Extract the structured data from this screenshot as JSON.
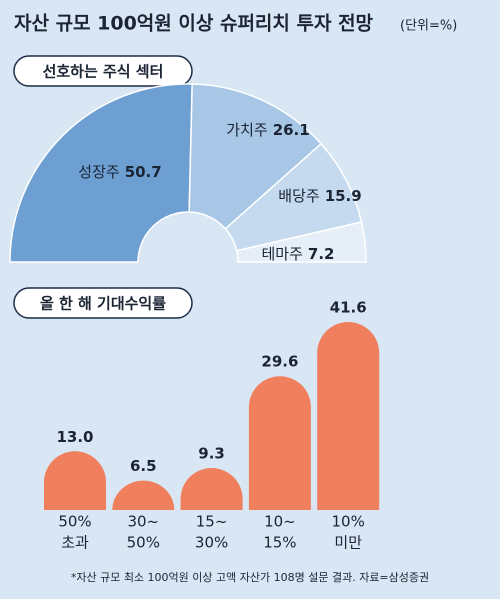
{
  "title": "자산 규모 100억원 이상 슈퍼리치 투자 전망",
  "unit": "(단위=%)",
  "footnote": "*자산 규모 최소 100억원 이상 고액 자산가 108명 설문 결과. 자료=삼성증권",
  "chart_data": [
    {
      "type": "half-donut",
      "title": "선호하는 주식 섹터",
      "categories": [
        "성장주",
        "가치주",
        "배당주",
        "테마주"
      ],
      "values": [
        50.7,
        26.1,
        15.9,
        7.2
      ],
      "colors": [
        "#6d9fd3",
        "#a8c6e6",
        "#c6daef",
        "#e6eff8"
      ]
    },
    {
      "type": "bar",
      "title": "올 한 해 기대수익률",
      "categories": [
        [
          "50%",
          "초과"
        ],
        [
          "30~",
          "50%"
        ],
        [
          "15~",
          "30%"
        ],
        [
          "10~",
          "15%"
        ],
        [
          "10%",
          "미만"
        ]
      ],
      "values": [
        13.0,
        6.5,
        9.3,
        29.6,
        41.6
      ],
      "value_labels": [
        "13.0",
        "6.5",
        "9.3",
        "29.6",
        "41.6"
      ],
      "color": "#f07f5e"
    }
  ]
}
